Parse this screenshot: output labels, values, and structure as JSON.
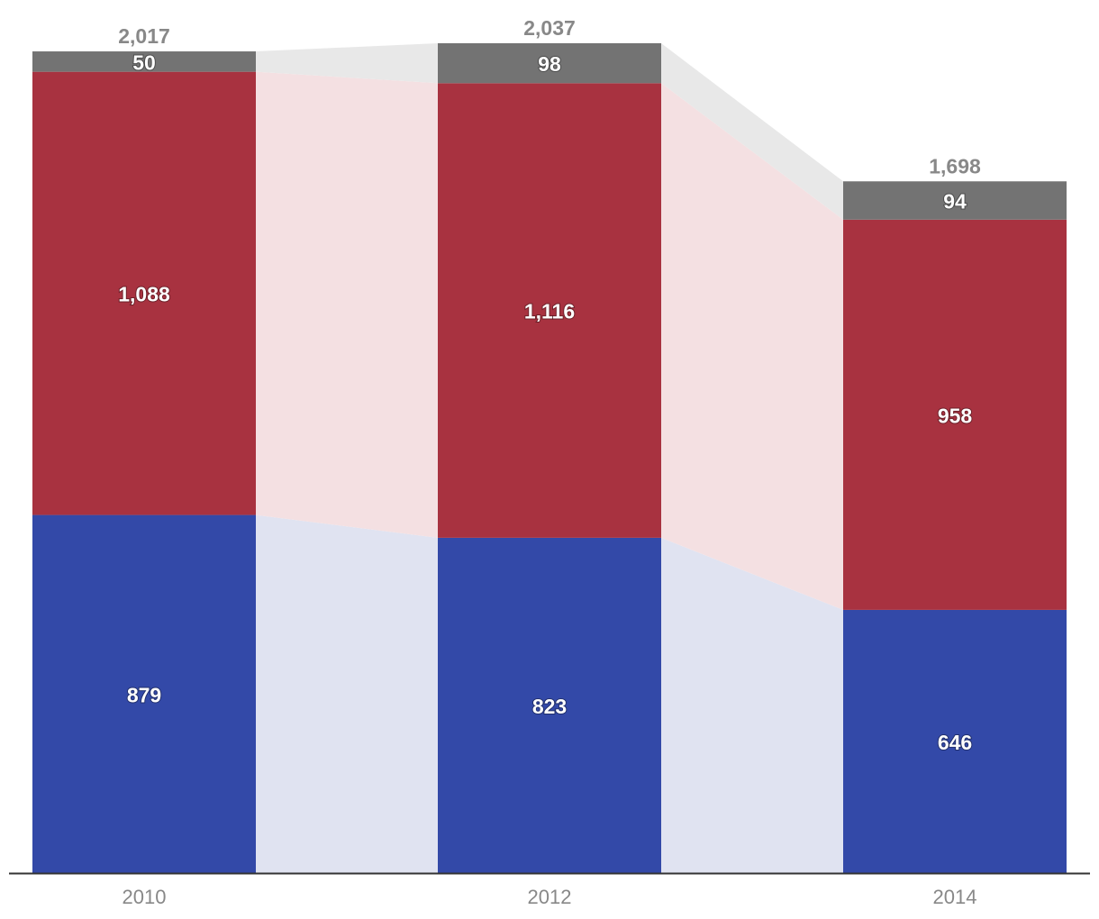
{
  "chart_data": {
    "type": "bar",
    "stacked": true,
    "connector_bands": true,
    "categories": [
      "2010",
      "2012",
      "2014"
    ],
    "series": [
      {
        "values": [
          879,
          823,
          646
        ],
        "color": "#3349a8",
        "band_color": "#e0e3f1"
      },
      {
        "values": [
          1088,
          1116,
          958
        ],
        "color": "#a83240",
        "band_color": "#f4e0e2"
      },
      {
        "values": [
          50,
          98,
          94
        ],
        "color": "#737373",
        "band_color": "#e8e8e8"
      }
    ],
    "segment_labels": [
      [
        "879",
        "1,088",
        "50"
      ],
      [
        "823",
        "1,116",
        "98"
      ],
      [
        "646",
        "958",
        "94"
      ]
    ],
    "totals": [
      2017,
      2037,
      1698
    ],
    "total_labels": [
      "2,017",
      "2,037",
      "1,698"
    ],
    "title": "",
    "xlabel": "",
    "ylabel": "",
    "ylim": [
      0,
      2037
    ],
    "grid": false,
    "axis_color": "#333333",
    "label_color": "#888888"
  }
}
